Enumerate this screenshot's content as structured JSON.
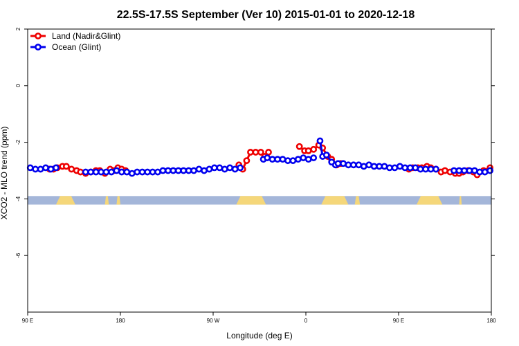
{
  "chart_data": {
    "type": "line",
    "title": "22.5S-17.5S September (Ver 10)   2015-01-01 to 2020-12-18",
    "xlabel": "Longitude (deg E)",
    "ylabel": "XCO2 - MLO trend (ppm)",
    "xlim": [
      90,
      450
    ],
    "ylim": [
      -8,
      2
    ],
    "x_ticks": [
      {
        "value": 90,
        "label": "90 E"
      },
      {
        "value": 162,
        "label": "180"
      },
      {
        "value": 234,
        "label": "90 W"
      },
      {
        "value": 306,
        "label": "0"
      },
      {
        "value": 378,
        "label": "90 E"
      },
      {
        "value": 450,
        "label": "180"
      }
    ],
    "y_ticks": [
      {
        "value": 2,
        "label": "2"
      },
      {
        "value": 0,
        "label": "0"
      },
      {
        "value": -2,
        "label": "-2"
      },
      {
        "value": -4,
        "label": "-4"
      },
      {
        "value": -6,
        "label": "-6"
      }
    ],
    "legend_position": "top-left",
    "grid": false,
    "series": [
      {
        "name": "Land (Nadir&Glint)",
        "color": "#ee0000",
        "segments": [
          {
            "x": [
              107,
              110,
              113,
              117,
              120,
              124,
              128,
              131,
              135,
              139,
              143,
              146,
              150,
              154,
              157,
              160,
              163,
              166
            ],
            "y": [
              -2.95,
              -2.95,
              -2.9,
              -2.85,
              -2.85,
              -2.95,
              -3.0,
              -3.05,
              -3.1,
              -3.05,
              -3.0,
              -3.0,
              -3.1,
              -2.95,
              -3.0,
              -2.9,
              -2.95,
              -3.0
            ]
          },
          {
            "x": [
              254,
              257,
              260,
              263,
              267,
              271,
              274,
              277
            ],
            "y": [
              -2.8,
              -2.95,
              -2.65,
              -2.35,
              -2.35,
              -2.35,
              -2.5,
              -2.35
            ]
          },
          {
            "x": [
              301,
              305,
              308,
              312,
              316,
              319,
              323,
              326,
              330,
              333
            ],
            "y": [
              -2.15,
              -2.3,
              -2.3,
              -2.25,
              -2.1,
              -2.2,
              -2.5,
              -2.6,
              -2.8,
              -2.75
            ]
          },
          {
            "x": [
              386,
              389,
              393,
              396,
              400,
              403,
              407,
              411,
              414,
              418,
              422,
              425,
              428,
              432,
              436,
              439,
              444,
              449
            ],
            "y": [
              -2.95,
              -2.9,
              -2.9,
              -2.9,
              -2.85,
              -2.9,
              -2.95,
              -3.05,
              -3.0,
              -3.05,
              -3.1,
              -3.1,
              -3.05,
              -3.0,
              -3.05,
              -3.15,
              -3.0,
              -2.9
            ]
          }
        ]
      },
      {
        "name": "Ocean (Glint)",
        "color": "#0000ee",
        "segments": [
          {
            "x": [
              92,
              96,
              100,
              104,
              108,
              112
            ],
            "y": [
              -2.9,
              -2.95,
              -2.95,
              -2.9,
              -2.95,
              -2.9
            ]
          },
          {
            "x": [
              135,
              139,
              143,
              147,
              151,
              155,
              159,
              163,
              167,
              171,
              175,
              179,
              183,
              187,
              191,
              195,
              199,
              203,
              207,
              211,
              215,
              219,
              223,
              227,
              231,
              235,
              239,
              243,
              247,
              251,
              255
            ],
            "y": [
              -3.05,
              -3.05,
              -3.05,
              -3.05,
              -3.05,
              -3.05,
              -3.0,
              -3.05,
              -3.05,
              -3.1,
              -3.05,
              -3.05,
              -3.05,
              -3.05,
              -3.05,
              -3.0,
              -3.0,
              -3.0,
              -3.0,
              -3.0,
              -3.0,
              -3.0,
              -2.95,
              -3.0,
              -2.95,
              -2.9,
              -2.9,
              -2.95,
              -2.9,
              -2.95,
              -2.9
            ]
          },
          {
            "x": [
              273,
              276,
              280,
              284,
              288,
              292,
              296,
              300,
              304,
              308,
              312
            ],
            "y": [
              -2.6,
              -2.55,
              -2.6,
              -2.6,
              -2.6,
              -2.65,
              -2.65,
              -2.6,
              -2.55,
              -2.6,
              -2.55
            ]
          },
          {
            "x": [
              317,
              319,
              322,
              326,
              329,
              331,
              335,
              339,
              343,
              347,
              351,
              355,
              359,
              363,
              367,
              371,
              375,
              379,
              383,
              387,
              391,
              395,
              399,
              403,
              407
            ],
            "y": [
              -1.95,
              -2.5,
              -2.45,
              -2.7,
              -2.8,
              -2.75,
              -2.75,
              -2.8,
              -2.8,
              -2.8,
              -2.85,
              -2.8,
              -2.85,
              -2.85,
              -2.85,
              -2.9,
              -2.9,
              -2.85,
              -2.9,
              -2.9,
              -2.9,
              -2.95,
              -2.95,
              -2.95,
              -2.95
            ]
          },
          {
            "x": [
              421,
              425,
              429,
              433,
              437,
              441,
              445,
              449
            ],
            "y": [
              -3.0,
              -3.0,
              -3.0,
              -3.0,
              -3.0,
              -3.05,
              -3.05,
              -3.0
            ]
          }
        ]
      }
    ],
    "surface_band": {
      "y_range": [
        -4.2,
        -3.9
      ],
      "ocean_color": "#a4b6d9",
      "land_color": "#f5d77a",
      "land_x": [
        [
          112,
          127
        ],
        [
          150,
          153
        ],
        [
          159,
          162
        ],
        [
          252,
          275
        ],
        [
          318,
          339
        ],
        [
          344,
          348
        ],
        [
          392,
          412
        ],
        [
          425,
          427
        ]
      ]
    }
  }
}
